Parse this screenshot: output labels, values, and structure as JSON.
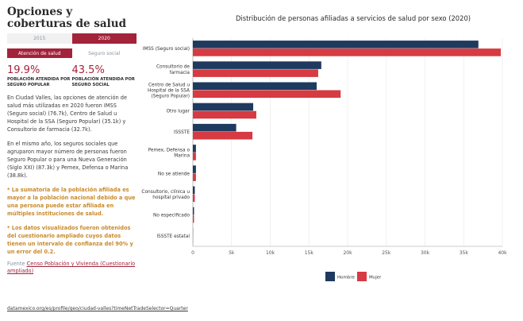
{
  "sidebar": {
    "title": "Opciones y coberturas de salud",
    "years": [
      "2015",
      "2020"
    ],
    "toggles": [
      "Atención de salud",
      "Seguro social"
    ],
    "stats": [
      {
        "value": "19.9%",
        "label": "POBLACIÓN ATENDIDA POR SEGURO POPULAR"
      },
      {
        "value": "43.5%",
        "label": "POBLACIÓN ATENDIDA POR SEGURO SOCIAL"
      }
    ],
    "paragraph1": "En Ciudad Valles, las opciones de atención de salud más utilizadas en 2020 fueron IMSS (Seguro social) (76.7k), Centro de Salud u Hospital de la SSA (Seguro Popular) (35.1k) y Consultorio de farmacia (32.7k).",
    "paragraph2": "En el mismo año, los seguros sociales que agruparon mayor número de personas fueron Seguro Popular o para una Nueva Generación (Siglo XXI) (87.3k) y Pemex, Defensa o Marina (38.8k).",
    "note1": "* La sumatoria de la población afiliada es mayor a la población nacional debido a que una persona puede estar afiliada en múltiples instituciones de salud.",
    "note2": "* Los datos visualizados fueron obtenidos del cuestionario ampliado cuyos datos tienen un intervalo de confianza del 90% y un error del 0.2.",
    "source_prefix": "Fuente",
    "source_link": "Censo Población y Vivienda (Cuestionario ampliado)"
  },
  "footer_url": "datamexico.org/es/profile/geo/ciudad-valles?timeNetTradeSelector=Quarter",
  "colors": {
    "accent": "#a3233b",
    "hombre": "#1f3a5f",
    "mujer": "#d63a42"
  },
  "chart_data": {
    "type": "bar",
    "orientation": "horizontal",
    "title": "Distribución de personas afiliadas a servicios de salud por sexo (2020)",
    "categories": [
      "IMSS (Seguro social)",
      "Consultorio de farmacia",
      "Centro de Salud u Hospital de la SSA (Seguro Popular)",
      "Otro lugar",
      "ISSSTE",
      "Pemex, Defensa o Marina",
      "No se atiende",
      "Consultorio, clínica u hospital privado",
      "No especificado",
      "ISSSTE estatal"
    ],
    "series": [
      {
        "name": "Hombre",
        "values": [
          36900,
          16600,
          16000,
          7800,
          5600,
          400,
          400,
          250,
          150,
          20
        ]
      },
      {
        "name": "Mujer",
        "values": [
          39800,
          16200,
          19100,
          8200,
          7700,
          400,
          400,
          250,
          150,
          20
        ]
      }
    ],
    "xlim": [
      0,
      40000
    ],
    "xticks": [
      "0",
      "5k",
      "10k",
      "15k",
      "20k",
      "25k",
      "30k",
      "35k",
      "40k"
    ],
    "legend": "bottom"
  }
}
